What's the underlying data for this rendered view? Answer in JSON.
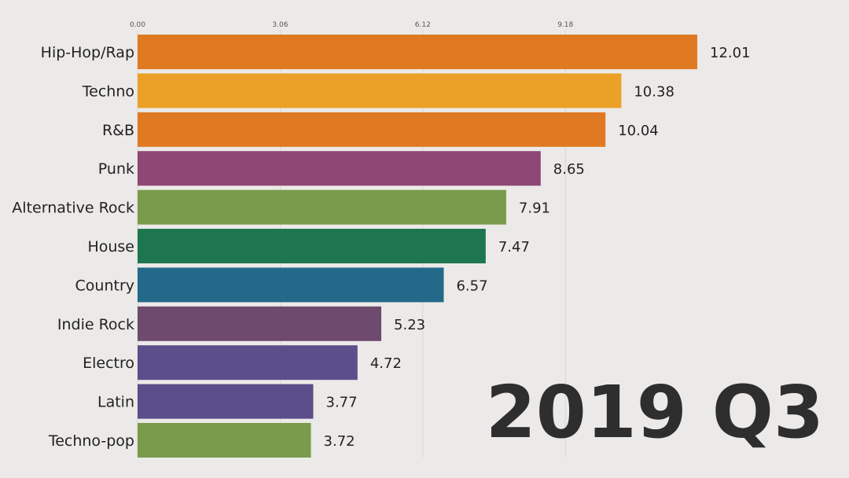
{
  "chart_data": {
    "type": "bar",
    "orientation": "horizontal",
    "period": "2019 Q3",
    "categories": [
      "Hip-Hop/Rap",
      "Techno",
      "R&B",
      "Punk",
      "Alternative Rock",
      "House",
      "Country",
      "Indie Rock",
      "Electro",
      "Latin",
      "Techno-pop"
    ],
    "values": [
      12.01,
      10.38,
      10.04,
      8.65,
      7.91,
      7.47,
      6.57,
      5.23,
      4.72,
      3.77,
      3.72
    ],
    "value_labels": [
      "12.01",
      "10.38",
      "10.04",
      "8.65",
      "7.91",
      "7.47",
      "6.57",
      "5.23",
      "4.72",
      "3.77",
      "3.72"
    ],
    "colors": [
      "#e07a22",
      "#eba128",
      "#e07a22",
      "#8f4775",
      "#7a9a4c",
      "#1e7650",
      "#236a8a",
      "#6e4a6e",
      "#5b4e8a",
      "#5b4e8a",
      "#7a9a4c"
    ],
    "xticks": [
      0,
      3.06,
      6.12,
      9.18
    ],
    "xtick_labels": [
      "0.00",
      "3.06",
      "6.12",
      "9.18"
    ],
    "xlim": [
      0,
      12.01
    ],
    "axis_position": "top",
    "grid": true,
    "title": "",
    "xlabel": "",
    "ylabel": ""
  }
}
